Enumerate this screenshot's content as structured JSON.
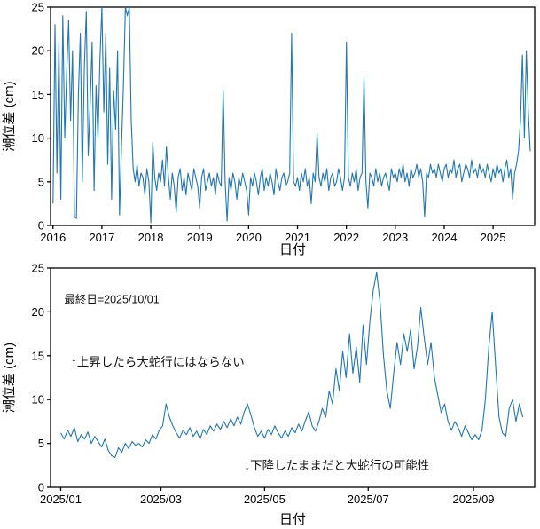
{
  "page": {
    "background": "#ffffff"
  },
  "chart_data": [
    {
      "type": "line",
      "title": "",
      "xlabel": "日付",
      "ylabel": "潮位差 (cm)",
      "line_color": "#1f77b4",
      "axis_color": "#000000",
      "grid": false,
      "legend": "none",
      "xlim": [
        2015.95,
        2025.85
      ],
      "ylim": [
        0,
        25
      ],
      "y_ticks": [
        0,
        5,
        10,
        15,
        20,
        25
      ],
      "x_ticks": [
        {
          "v": 2016,
          "label": "2016"
        },
        {
          "v": 2017,
          "label": "2017"
        },
        {
          "v": 2018,
          "label": "2018"
        },
        {
          "v": 2019,
          "label": "2019"
        },
        {
          "v": 2020,
          "label": "2020"
        },
        {
          "v": 2021,
          "label": "2021"
        },
        {
          "v": 2022,
          "label": "2022"
        },
        {
          "v": 2023,
          "label": "2023"
        },
        {
          "v": 2024,
          "label": "2024"
        },
        {
          "v": 2025,
          "label": "2025"
        }
      ],
      "x_start": 2016.0,
      "x_step": 0.04,
      "values": [
        2.5,
        23,
        6,
        21,
        3,
        24,
        10,
        17.5,
        23.5,
        12,
        20,
        1,
        0.8,
        15,
        22,
        5,
        18,
        24.5,
        8,
        14,
        21,
        4,
        16,
        10,
        19,
        25,
        13,
        22,
        7,
        18,
        3,
        15.5,
        11,
        20,
        1.2,
        9,
        16,
        25,
        24,
        25,
        12,
        6.5,
        5,
        7,
        4.5,
        6,
        5.5,
        3.5,
        6.5,
        5,
        0.3,
        9.5,
        5.5,
        4,
        6,
        5,
        7.5,
        4.5,
        9,
        5.5,
        3,
        6,
        4.5,
        1.5,
        5.5,
        6.5,
        4,
        5.5,
        3.5,
        6,
        5,
        4,
        6.5,
        5.5,
        4.5,
        2,
        5.5,
        6.5,
        4,
        5,
        6,
        4.5,
        5.5,
        3.5,
        6,
        5,
        4.5,
        15.5,
        5,
        0.5,
        5.5,
        4,
        6,
        5,
        3,
        5.5,
        4.5,
        6,
        5,
        4,
        1.2,
        5.5,
        4.5,
        6,
        5,
        3.5,
        5.5,
        6.5,
        4,
        5.5,
        4.5,
        6,
        5,
        3.5,
        6.5,
        5,
        4,
        5.5,
        6,
        4.5,
        5,
        6,
        22,
        5,
        4.5,
        5.5,
        4,
        6,
        5,
        6.5,
        4.5,
        5.5,
        2.5,
        6,
        5,
        10.5,
        5.5,
        4.5,
        6,
        5,
        6.5,
        4,
        5.5,
        6,
        4.5,
        5,
        6.5,
        5.5,
        4,
        5.5,
        21,
        5.5,
        4.5,
        6,
        5,
        6.5,
        4,
        5.5,
        6,
        17,
        5,
        2,
        6,
        5.5,
        4.5,
        6.5,
        5,
        6,
        4.5,
        5.5,
        6,
        5,
        4,
        6.5,
        5.5,
        6,
        5,
        6.5,
        5.5,
        7,
        5,
        6,
        4.5,
        6.5,
        5.5,
        6,
        7,
        5.5,
        6.5,
        5,
        1,
        6,
        5.5,
        7,
        6,
        6.5,
        5.5,
        7,
        6,
        5,
        6.5,
        7,
        5.5,
        6.5,
        6,
        7.5,
        5.5,
        6.5,
        7,
        5,
        6,
        7,
        6.5,
        5.5,
        7.5,
        6,
        6.5,
        5.5,
        7,
        6,
        6.5,
        5.5,
        7,
        6,
        5,
        6.5,
        5.5,
        7,
        6,
        6.5,
        5,
        6.5,
        7.5,
        5.5,
        6.5,
        3,
        6,
        7,
        8.5,
        12,
        19.5,
        10,
        20,
        13,
        8.5
      ],
      "annotations": []
    },
    {
      "type": "line",
      "title": "",
      "xlabel": "日付",
      "ylabel": "潮位差 (cm)",
      "line_color": "#1f77b4",
      "axis_color": "#000000",
      "grid": false,
      "legend": "none",
      "x_unit": "days since 2025/01/01",
      "xlim": [
        -6,
        279
      ],
      "ylim": [
        0,
        25
      ],
      "y_ticks": [
        0,
        5,
        10,
        15,
        20,
        25
      ],
      "x_ticks": [
        {
          "v": 0,
          "label": "2025/01"
        },
        {
          "v": 59,
          "label": "2025/03"
        },
        {
          "v": 120,
          "label": "2025/05"
        },
        {
          "v": 181,
          "label": "2025/07"
        },
        {
          "v": 243,
          "label": "2025/09"
        }
      ],
      "x_start": 0,
      "x_step": 2,
      "values": [
        6.2,
        5.5,
        6.5,
        5.8,
        6.8,
        5.2,
        6.0,
        5.5,
        6.3,
        5.0,
        5.8,
        5.2,
        4.6,
        5.5,
        4.2,
        3.6,
        3.4,
        4.5,
        4.0,
        5.0,
        4.4,
        5.2,
        4.8,
        5.0,
        4.6,
        5.4,
        5.0,
        6.0,
        5.5,
        6.5,
        7.0,
        9.5,
        8.0,
        7.0,
        6.2,
        5.6,
        6.5,
        6.0,
        6.8,
        5.8,
        6.4,
        5.5,
        6.6,
        6.0,
        7.0,
        6.4,
        7.2,
        6.6,
        7.5,
        6.8,
        7.8,
        7.0,
        8.0,
        7.2,
        8.6,
        9.5,
        8.2,
        6.8,
        5.8,
        6.4,
        5.6,
        6.6,
        6.0,
        7.0,
        6.2,
        5.6,
        6.4,
        5.8,
        6.8,
        6.2,
        7.2,
        6.4,
        7.6,
        8.6,
        7.0,
        6.4,
        7.5,
        9.0,
        8.0,
        11.0,
        9.5,
        13.5,
        11.0,
        15.5,
        12.5,
        17.5,
        13.0,
        16.0,
        12.0,
        18.5,
        14.0,
        19.0,
        22.5,
        24.5,
        21.0,
        15.0,
        11.0,
        9.0,
        13.0,
        16.5,
        14.0,
        17.5,
        15.5,
        18.0,
        13.5,
        16.0,
        20.5,
        17.0,
        14.0,
        16.5,
        12.5,
        10.5,
        8.5,
        9.5,
        7.5,
        6.5,
        7.5,
        6.8,
        5.8,
        7.0,
        6.2,
        5.4,
        6.0,
        5.4,
        6.5,
        10.0,
        16.0,
        20.0,
        14.0,
        8.0,
        6.2,
        5.8,
        9.0,
        10.0,
        7.5,
        9.5,
        8.0
      ],
      "annotations": [
        {
          "x": 2,
          "y": 21.0,
          "text": "最終日=2025/10/01",
          "size": 12.5
        },
        {
          "x": 6,
          "y": 13.8,
          "text": "↑上昇したら大蛇行にはならない",
          "size": 13.5
        },
        {
          "x": 108,
          "y": 2.0,
          "text": "↓下降したままだと大蛇行の可能性",
          "size": 13.5
        }
      ]
    }
  ]
}
